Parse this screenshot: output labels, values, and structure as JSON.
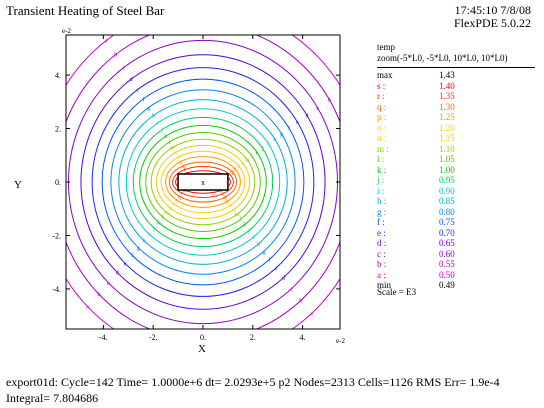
{
  "header": {
    "title": "Transient Heating of Steel Bar",
    "timestamp": "17:45:10 7/8/08",
    "version": "FlexPDE 5.0.22"
  },
  "legend": {
    "var_name": "temp",
    "zoom": "zoom(-5*L0, -5*L0, 10*L0, 10*L0)",
    "max_label": "max",
    "max_value": "1.43",
    "min_label": "min",
    "min_value": "0.49",
    "scale": "Scale = E3",
    "levels": [
      {
        "key": "s :",
        "value": "1.40",
        "color": "#ff0000"
      },
      {
        "key": "r :",
        "value": "1.35",
        "color": "#ff3300"
      },
      {
        "key": "q :",
        "value": "1.30",
        "color": "#ff6600"
      },
      {
        "key": "p :",
        "value": "1.25",
        "color": "#ff9900"
      },
      {
        "key": "o :",
        "value": "1.20",
        "color": "#ffcc00"
      },
      {
        "key": "n :",
        "value": "1.15",
        "color": "#e6d200"
      },
      {
        "key": "m :",
        "value": "1.10",
        "color": "#99cc00"
      },
      {
        "key": "l :",
        "value": "1.05",
        "color": "#55cc00"
      },
      {
        "key": "k :",
        "value": "1.00",
        "color": "#00cc00"
      },
      {
        "key": "j :",
        "value": "0.95",
        "color": "#00cc66"
      },
      {
        "key": "i :",
        "value": "0.90",
        "color": "#00cccc"
      },
      {
        "key": "h :",
        "value": "0.85",
        "color": "#00aadd"
      },
      {
        "key": "g :",
        "value": "0.80",
        "color": "#0088ee"
      },
      {
        "key": "f :",
        "value": "0.75",
        "color": "#0055ff"
      },
      {
        "key": "e :",
        "value": "0.70",
        "color": "#2222ee"
      },
      {
        "key": "d :",
        "value": "0.65",
        "color": "#5500dd"
      },
      {
        "key": "c :",
        "value": "0.60",
        "color": "#8800cc"
      },
      {
        "key": "b :",
        "value": "0.55",
        "color": "#aa00bb"
      },
      {
        "key": "a :",
        "value": "0.50",
        "color": "#cc00cc"
      }
    ]
  },
  "chart_data": {
    "type": "contour",
    "xlabel": "X",
    "ylabel": "Y",
    "x_scale_label": "e-2",
    "y_scale_label": "e-2",
    "xlim": [
      -5.5,
      5.5
    ],
    "ylim": [
      -5.5,
      5.5
    ],
    "xticks": [
      -4,
      -2,
      0,
      2,
      4
    ],
    "yticks": [
      -4,
      -2,
      0,
      2,
      4
    ],
    "xtick_labels": [
      "-4.",
      "-2.",
      "0.",
      "2.",
      "4."
    ],
    "ytick_labels": [
      "-4.",
      "-2.",
      "0.",
      "2.",
      "4."
    ],
    "center_marker": "x",
    "bar": {
      "x": [
        -1,
        1
      ],
      "y": [
        -0.3,
        0.3
      ]
    },
    "contour_radii": [
      {
        "level": "s",
        "rx": 1.1,
        "ry": 0.42
      },
      {
        "level": "r",
        "rx": 1.22,
        "ry": 0.58
      },
      {
        "level": "q",
        "rx": 1.35,
        "ry": 0.75
      },
      {
        "level": "p",
        "rx": 1.5,
        "ry": 0.95
      },
      {
        "level": "o",
        "rx": 1.68,
        "ry": 1.15
      },
      {
        "level": "n",
        "rx": 1.87,
        "ry": 1.37
      },
      {
        "level": "m",
        "rx": 2.08,
        "ry": 1.6
      },
      {
        "level": "l",
        "rx": 2.3,
        "ry": 1.85
      },
      {
        "level": "k",
        "rx": 2.54,
        "ry": 2.12
      },
      {
        "level": "j",
        "rx": 2.8,
        "ry": 2.42
      },
      {
        "level": "i",
        "rx": 3.08,
        "ry": 2.74
      },
      {
        "level": "h",
        "rx": 3.38,
        "ry": 3.08
      },
      {
        "level": "g",
        "rx": 3.7,
        "ry": 3.45
      },
      {
        "level": "f",
        "rx": 4.05,
        "ry": 3.85
      },
      {
        "level": "e",
        "rx": 4.45,
        "ry": 4.28
      },
      {
        "level": "d",
        "rx": 4.9,
        "ry": 4.76
      },
      {
        "level": "c",
        "rx": 5.4,
        "ry": 5.3
      },
      {
        "level": "b",
        "rx": 5.95,
        "ry": 5.9
      },
      {
        "level": "a",
        "rx": 6.6,
        "ry": 6.55
      }
    ]
  },
  "footer": {
    "line1": "export01d:  Cycle=142  Time= 1.0000e+6  dt= 2.0293e+5  p2  Nodes=2313  Cells=1126  RMS Err= 1.9e-4",
    "line2": "Integral=  7.804686"
  }
}
